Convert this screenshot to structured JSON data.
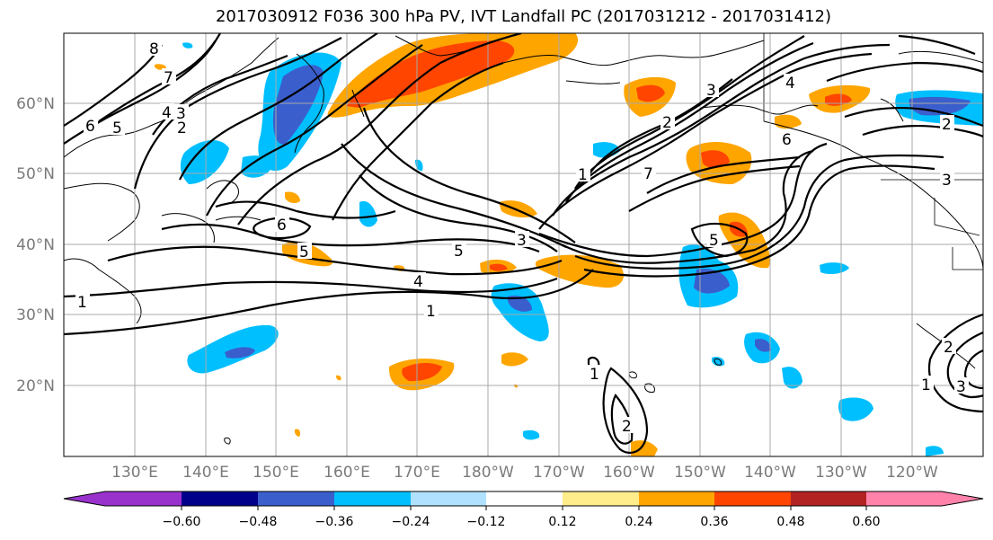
{
  "title": "2017030912 F036 300 hPa PV, IVT Landfall PC (2017031212 - 2017031412)",
  "lon_labels": [
    "130°E",
    "140°E",
    "150°E",
    "160°E",
    "170°E",
    "180°W",
    "170°W",
    "160°W",
    "150°W",
    "140°W",
    "130°W",
    "120°W"
  ],
  "lat_labels": [
    "60°N",
    "50°N",
    "40°N",
    "30°N",
    "20°N"
  ],
  "colorbar": {
    "colors": [
      "#9932cc",
      "#00008b",
      "#3a5fcd",
      "#00bfff",
      "#b0e2ff",
      "#ffffff",
      "#ffec8b",
      "#ffa500",
      "#ff4500",
      "#b22222",
      "#ff82ab"
    ],
    "tick_labels": [
      "−0.60",
      "−0.48",
      "−0.36",
      "−0.24",
      "−0.12",
      "0.12",
      "0.24",
      "0.36",
      "0.48",
      "0.60"
    ]
  },
  "contour_labels": [
    "8",
    "7",
    "6",
    "5",
    "4",
    "3",
    "2",
    "1",
    "6",
    "5",
    "5",
    "4",
    "3",
    "1",
    "5",
    "1",
    "2",
    "3",
    "4",
    "6",
    "7",
    "2",
    "3",
    "1",
    "2",
    "1",
    "2",
    "3"
  ]
}
